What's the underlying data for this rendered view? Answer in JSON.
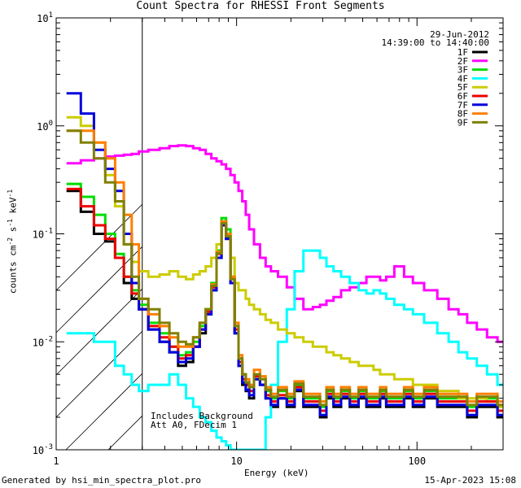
{
  "chart_data": {
    "type": "line",
    "title": "Count Spectra for RHESSI Front Segments",
    "date": "29-Jun-2012",
    "time_range": "14:39:00 to 14:40:00",
    "xlabel": "Energy (keV)",
    "ylabel_prefix": "counts cm",
    "ylabel_mid": " s",
    "ylabel_end": " keV",
    "ylabel_exp1": "-2",
    "ylabel_exp2": "-1",
    "ylabel_exp3": "-1",
    "xscale": "log",
    "yscale": "log",
    "xlim": [
      1,
      300
    ],
    "ylim": [
      0.001,
      10
    ],
    "x_ticks": [
      {
        "value": 1,
        "label": "1"
      },
      {
        "value": 10,
        "label": "10"
      },
      {
        "value": 100,
        "label": "100"
      }
    ],
    "y_ticks": [
      {
        "value": 0.001,
        "base": "10",
        "exp": "-3"
      },
      {
        "value": 0.01,
        "base": "10",
        "exp": "-2"
      },
      {
        "value": 0.1,
        "base": "10",
        "exp": "-1"
      },
      {
        "value": 1,
        "base": "10",
        "exp": "0"
      },
      {
        "value": 10,
        "base": "10",
        "exp": "1"
      }
    ],
    "hatched_region_x": [
      1,
      3
    ],
    "annotations": [
      "Includes Background",
      "Att A0, FDecim 1"
    ],
    "legend_position": "top-right",
    "energy_bins": [
      1.25,
      1.5,
      1.75,
      2,
      2.25,
      2.5,
      2.75,
      3,
      3.5,
      4,
      4.5,
      5,
      5.5,
      6,
      6.5,
      7,
      7.5,
      8,
      8.5,
      9,
      9.5,
      10,
      10.5,
      11,
      11.5,
      12,
      13,
      14,
      15,
      16,
      18,
      20,
      22,
      25,
      28,
      30,
      33,
      36,
      40,
      45,
      50,
      55,
      60,
      65,
      70,
      80,
      90,
      100,
      120,
      140,
      160,
      180,
      200,
      230,
      260,
      300
    ],
    "series": [
      {
        "name": "1F",
        "color": "#000000",
        "values": [
          0.25,
          0.16,
          0.1,
          0.085,
          0.06,
          0.035,
          0.025,
          0.02,
          0.013,
          0.01,
          0.008,
          0.006,
          0.0065,
          0.009,
          0.012,
          0.018,
          0.03,
          0.06,
          0.12,
          0.09,
          0.035,
          0.012,
          0.006,
          0.004,
          0.0035,
          0.003,
          0.0045,
          0.004,
          0.003,
          0.0025,
          0.003,
          0.0025,
          0.0035,
          0.0025,
          0.0025,
          0.002,
          0.003,
          0.0025,
          0.003,
          0.0025,
          0.003,
          0.0025,
          0.0025,
          0.003,
          0.0025,
          0.0025,
          0.003,
          0.0025,
          0.003,
          0.0025,
          0.0025,
          0.0025,
          0.002,
          0.0025,
          0.0025,
          0.002
        ]
      },
      {
        "name": "2F",
        "color": "#ff00ff",
        "values": [
          0.45,
          0.48,
          0.5,
          0.52,
          0.53,
          0.54,
          0.55,
          0.58,
          0.6,
          0.62,
          0.65,
          0.66,
          0.65,
          0.62,
          0.6,
          0.55,
          0.5,
          0.47,
          0.44,
          0.4,
          0.35,
          0.3,
          0.25,
          0.2,
          0.15,
          0.11,
          0.08,
          0.06,
          0.05,
          0.045,
          0.04,
          0.032,
          0.025,
          0.02,
          0.021,
          0.022,
          0.024,
          0.026,
          0.03,
          0.032,
          0.035,
          0.04,
          0.04,
          0.037,
          0.04,
          0.05,
          0.04,
          0.035,
          0.03,
          0.025,
          0.02,
          0.018,
          0.015,
          0.013,
          0.011,
          0.01
        ]
      },
      {
        "name": "3F",
        "color": "#00dd00",
        "values": [
          0.29,
          0.22,
          0.15,
          0.1,
          0.065,
          0.04,
          0.03,
          0.022,
          0.015,
          0.012,
          0.009,
          0.0075,
          0.008,
          0.01,
          0.014,
          0.02,
          0.035,
          0.07,
          0.14,
          0.11,
          0.04,
          0.014,
          0.007,
          0.005,
          0.004,
          0.0035,
          0.005,
          0.0045,
          0.0035,
          0.003,
          0.0035,
          0.003,
          0.004,
          0.003,
          0.003,
          0.0025,
          0.0035,
          0.003,
          0.0035,
          0.003,
          0.0035,
          0.003,
          0.003,
          0.0035,
          0.003,
          0.003,
          0.0035,
          0.003,
          0.0035,
          0.003,
          0.003,
          0.003,
          0.0025,
          0.003,
          0.003,
          0.0025
        ]
      },
      {
        "name": "4F",
        "color": "#00ffff",
        "values": [
          0.012,
          0.012,
          0.01,
          0.01,
          0.006,
          0.005,
          0.004,
          0.0035,
          0.004,
          0.004,
          0.005,
          0.004,
          0.003,
          0.0025,
          0.002,
          0.0018,
          0.0015,
          0.0013,
          0.0012,
          0.0011,
          0.001,
          0.001,
          0.001,
          0.001,
          0.001,
          0.001,
          0.001,
          0.001,
          0.002,
          0.004,
          0.01,
          0.02,
          0.045,
          0.07,
          0.07,
          0.06,
          0.05,
          0.045,
          0.04,
          0.035,
          0.03,
          0.028,
          0.03,
          0.028,
          0.025,
          0.022,
          0.02,
          0.018,
          0.015,
          0.012,
          0.01,
          0.008,
          0.007,
          0.006,
          0.005,
          0.004
        ]
      },
      {
        "name": "5F",
        "color": "#cccc00",
        "values": [
          1.2,
          1.0,
          0.7,
          0.35,
          0.18,
          0.08,
          0.055,
          0.045,
          0.04,
          0.042,
          0.045,
          0.04,
          0.038,
          0.042,
          0.045,
          0.05,
          0.06,
          0.08,
          0.12,
          0.1,
          0.06,
          0.035,
          0.03,
          0.03,
          0.025,
          0.022,
          0.02,
          0.018,
          0.016,
          0.015,
          0.013,
          0.012,
          0.011,
          0.01,
          0.009,
          0.009,
          0.008,
          0.0075,
          0.007,
          0.0065,
          0.006,
          0.006,
          0.0055,
          0.005,
          0.005,
          0.0045,
          0.0045,
          0.004,
          0.004,
          0.0035,
          0.0035,
          0.003,
          0.003,
          0.003,
          0.0028,
          0.0025
        ]
      },
      {
        "name": "6F",
        "color": "#ee0000",
        "values": [
          0.26,
          0.18,
          0.12,
          0.09,
          0.06,
          0.04,
          0.028,
          0.02,
          0.014,
          0.011,
          0.009,
          0.007,
          0.0075,
          0.009,
          0.013,
          0.019,
          0.032,
          0.065,
          0.13,
          0.1,
          0.038,
          0.013,
          0.0065,
          0.0045,
          0.004,
          0.0035,
          0.0048,
          0.004,
          0.0032,
          0.0028,
          0.0032,
          0.0028,
          0.0038,
          0.0028,
          0.0028,
          0.0023,
          0.0033,
          0.0028,
          0.0033,
          0.0028,
          0.0033,
          0.0028,
          0.0028,
          0.0033,
          0.0028,
          0.0028,
          0.0033,
          0.0028,
          0.0033,
          0.0028,
          0.0028,
          0.0028,
          0.0023,
          0.0028,
          0.0028,
          0.0023
        ]
      },
      {
        "name": "7F",
        "color": "#0000dd",
        "values": [
          2.0,
          1.3,
          0.6,
          0.4,
          0.25,
          0.1,
          0.035,
          0.02,
          0.013,
          0.01,
          0.008,
          0.0065,
          0.007,
          0.009,
          0.013,
          0.018,
          0.03,
          0.06,
          0.12,
          0.09,
          0.035,
          0.012,
          0.006,
          0.0042,
          0.0036,
          0.0032,
          0.0045,
          0.004,
          0.003,
          0.0026,
          0.003,
          0.0026,
          0.0036,
          0.0026,
          0.0026,
          0.0021,
          0.0031,
          0.0026,
          0.0031,
          0.0026,
          0.0031,
          0.0026,
          0.0026,
          0.0031,
          0.0026,
          0.0026,
          0.0031,
          0.0026,
          0.0031,
          0.0026,
          0.0026,
          0.0026,
          0.0021,
          0.0026,
          0.0026,
          0.0021
        ]
      },
      {
        "name": "8F",
        "color": "#ff7f00",
        "values": [
          0.9,
          0.9,
          0.7,
          0.5,
          0.3,
          0.15,
          0.08,
          0.025,
          0.018,
          0.014,
          0.011,
          0.009,
          0.009,
          0.011,
          0.015,
          0.02,
          0.034,
          0.068,
          0.13,
          0.1,
          0.04,
          0.015,
          0.0075,
          0.005,
          0.0045,
          0.004,
          0.0055,
          0.0048,
          0.0038,
          0.0033,
          0.0038,
          0.0033,
          0.0043,
          0.0033,
          0.0033,
          0.0028,
          0.0038,
          0.0033,
          0.0038,
          0.0033,
          0.0038,
          0.0033,
          0.0033,
          0.0038,
          0.0033,
          0.0033,
          0.0038,
          0.0033,
          0.0038,
          0.0033,
          0.0033,
          0.0033,
          0.0028,
          0.0033,
          0.0033,
          0.0028
        ]
      },
      {
        "name": "9F",
        "color": "#808000",
        "values": [
          0.9,
          0.7,
          0.5,
          0.3,
          0.2,
          0.08,
          0.04,
          0.025,
          0.02,
          0.015,
          0.012,
          0.01,
          0.0095,
          0.011,
          0.015,
          0.02,
          0.033,
          0.066,
          0.125,
          0.095,
          0.038,
          0.014,
          0.007,
          0.005,
          0.0042,
          0.0038,
          0.005,
          0.0045,
          0.0036,
          0.0031,
          0.0036,
          0.0031,
          0.0041,
          0.0031,
          0.0031,
          0.0026,
          0.0036,
          0.0031,
          0.0036,
          0.0031,
          0.0036,
          0.0031,
          0.0031,
          0.0036,
          0.0031,
          0.0031,
          0.0036,
          0.0031,
          0.0036,
          0.0031,
          0.0031,
          0.0031,
          0.0026,
          0.0031,
          0.0031,
          0.0026
        ]
      }
    ]
  },
  "footer": {
    "generator": "Generated by hsi_min_spectra_plot.pro",
    "timestamp": "15-Apr-2023 15:08"
  }
}
